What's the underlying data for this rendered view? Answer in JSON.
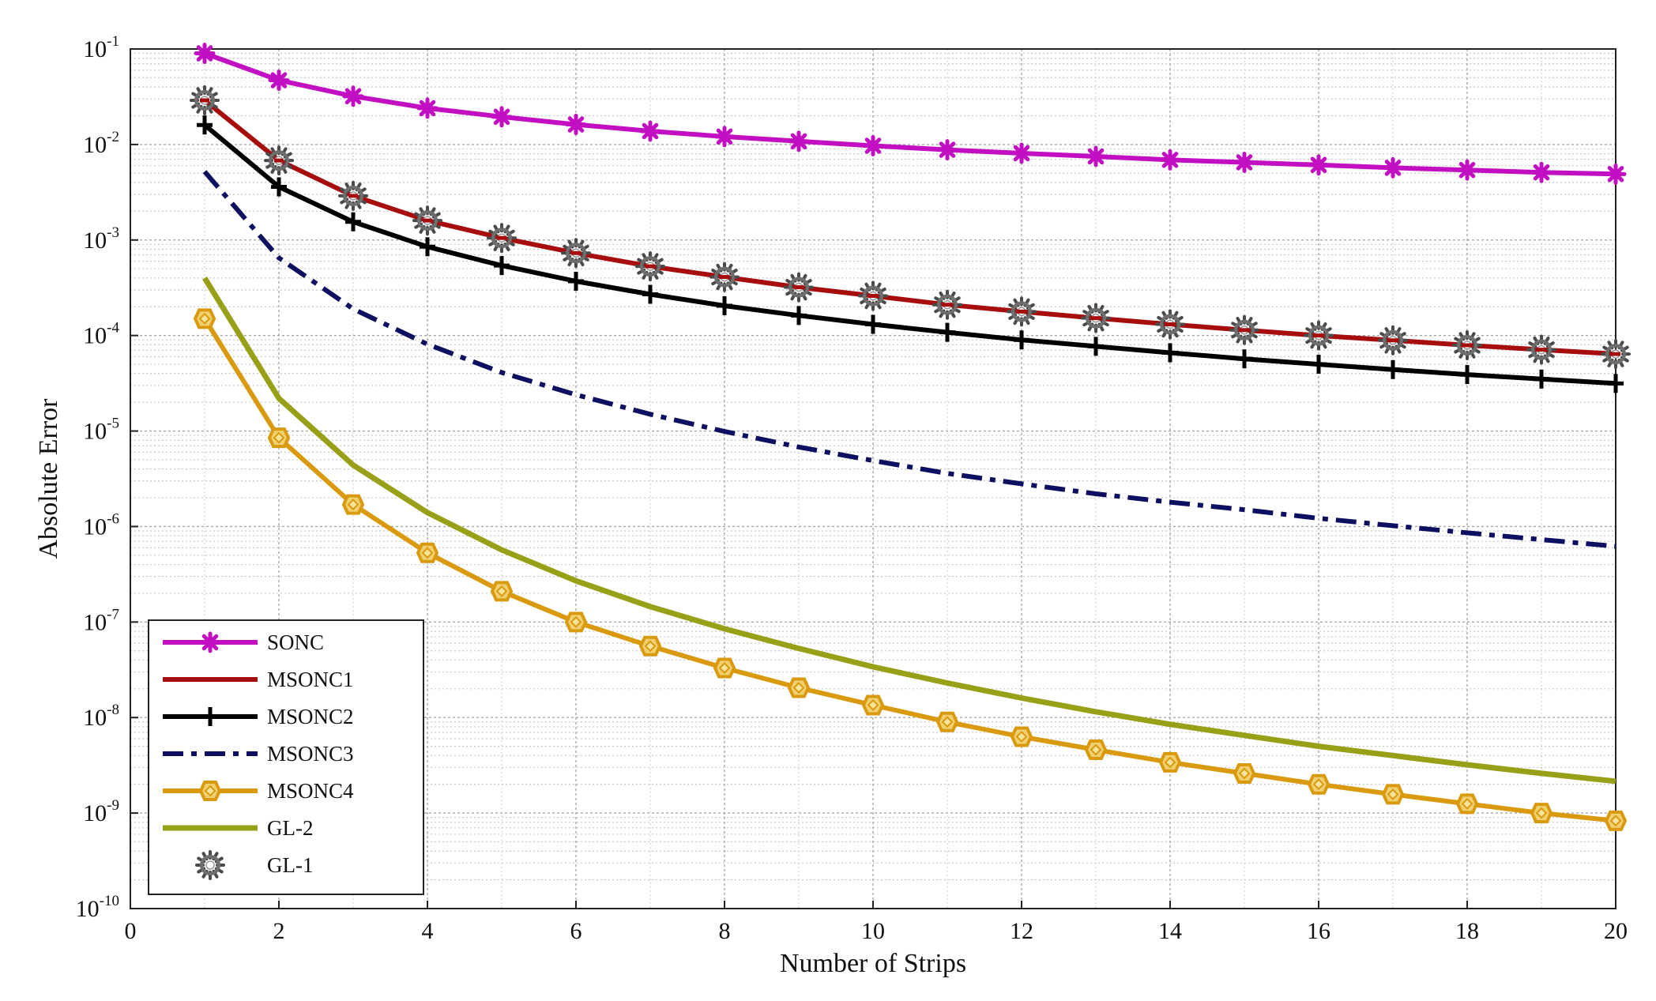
{
  "chart_data": {
    "type": "line",
    "title": "",
    "xlabel": "Number of Strips",
    "ylabel": "Absolute Error",
    "xlim": [
      0,
      20
    ],
    "ylim_log10": [
      -10,
      -1
    ],
    "yscale": "log",
    "grid": true,
    "legend_position": "bottom-left",
    "xticks": [
      0,
      2,
      4,
      6,
      8,
      10,
      12,
      14,
      16,
      18,
      20
    ],
    "yticks": [
      {
        "exp": -1,
        "label": "10",
        "sup": "-1"
      },
      {
        "exp": -2,
        "label": "10",
        "sup": "-2"
      },
      {
        "exp": -3,
        "label": "10",
        "sup": "-3"
      },
      {
        "exp": -4,
        "label": "10",
        "sup": "-4"
      },
      {
        "exp": -5,
        "label": "10",
        "sup": "-5"
      },
      {
        "exp": -6,
        "label": "10",
        "sup": "-6"
      },
      {
        "exp": -7,
        "label": "10",
        "sup": "-7"
      },
      {
        "exp": -8,
        "label": "10",
        "sup": "-8"
      },
      {
        "exp": -9,
        "label": "10",
        "sup": "-9"
      },
      {
        "exp": -10,
        "label": "10",
        "sup": "-10"
      }
    ],
    "x": [
      1,
      2,
      3,
      4,
      5,
      6,
      7,
      8,
      9,
      10,
      11,
      12,
      13,
      14,
      15,
      16,
      17,
      18,
      19,
      20
    ],
    "series": [
      {
        "name": "SONC",
        "color": "#c20fc2",
        "marker": "star",
        "dash": "solid",
        "values": [
          0.09,
          0.047,
          0.032,
          0.024,
          0.0195,
          0.0162,
          0.0138,
          0.0121,
          0.0108,
          0.0097,
          0.0088,
          0.0081,
          0.0075,
          0.0069,
          0.0065,
          0.0061,
          0.0057,
          0.0054,
          0.0051,
          0.0049
        ]
      },
      {
        "name": "MSONC1",
        "color": "#a80d0d",
        "marker": "none",
        "dash": "solid",
        "values": [
          0.029,
          0.0068,
          0.0029,
          0.0016,
          0.00105,
          0.00073,
          0.00053,
          0.00041,
          0.00032,
          0.00026,
          0.00021,
          0.000178,
          0.000152,
          0.000131,
          0.000114,
          0.0001,
          8.9e-05,
          7.9e-05,
          7.1e-05,
          6.4e-05
        ]
      },
      {
        "name": "MSONC2",
        "color": "#000000",
        "marker": "plus",
        "dash": "solid",
        "values": [
          0.016,
          0.0036,
          0.00155,
          0.00085,
          0.00054,
          0.00037,
          0.00027,
          0.000205,
          0.000162,
          0.000131,
          0.000108,
          9e-05,
          7.7e-05,
          6.6e-05,
          5.7e-05,
          5e-05,
          4.4e-05,
          3.9e-05,
          3.5e-05,
          3.15e-05
        ]
      },
      {
        "name": "MSONC3",
        "color": "#0d1060",
        "marker": "none",
        "dash": "dashdot",
        "values": [
          0.0052,
          0.00065,
          0.00019,
          8.1e-05,
          4.1e-05,
          2.4e-05,
          1.5e-05,
          9.9e-06,
          6.8e-06,
          4.9e-06,
          3.6e-06,
          2.8e-06,
          2.2e-06,
          1.8e-06,
          1.5e-06,
          1.22e-06,
          1.02e-06,
          8.6e-07,
          7.3e-07,
          6.2e-07
        ]
      },
      {
        "name": "MSONC4",
        "color": "#d99a10",
        "marker": "diamond",
        "dash": "solid",
        "values": [
          0.00015,
          8.5e-06,
          1.7e-06,
          5.3e-07,
          2.1e-07,
          1e-07,
          5.6e-08,
          3.3e-08,
          2.05e-08,
          1.35e-08,
          9e-09,
          6.3e-09,
          4.6e-09,
          3.4e-09,
          2.6e-09,
          2e-09,
          1.57e-09,
          1.25e-09,
          1e-09,
          8.3e-10
        ]
      },
      {
        "name": "GL-2",
        "color": "#98a018",
        "marker": "none",
        "dash": "solid",
        "values": [
          0.0004,
          2.2e-05,
          4.4e-06,
          1.4e-06,
          5.7e-07,
          2.7e-07,
          1.45e-07,
          8.5e-08,
          5.3e-08,
          3.4e-08,
          2.3e-08,
          1.6e-08,
          1.15e-08,
          8.5e-09,
          6.5e-09,
          5e-09,
          4e-09,
          3.2e-09,
          2.6e-09,
          2.15e-09
        ]
      },
      {
        "name": "GL-1",
        "color": "#606060",
        "marker": "gear",
        "dash": "none",
        "values": [
          0.029,
          0.0068,
          0.0029,
          0.0016,
          0.00105,
          0.00073,
          0.00053,
          0.00041,
          0.00032,
          0.00026,
          0.00021,
          0.000178,
          0.000152,
          0.000131,
          0.000114,
          0.0001,
          8.9e-05,
          7.9e-05,
          7.1e-05,
          6.4e-05
        ]
      }
    ]
  }
}
